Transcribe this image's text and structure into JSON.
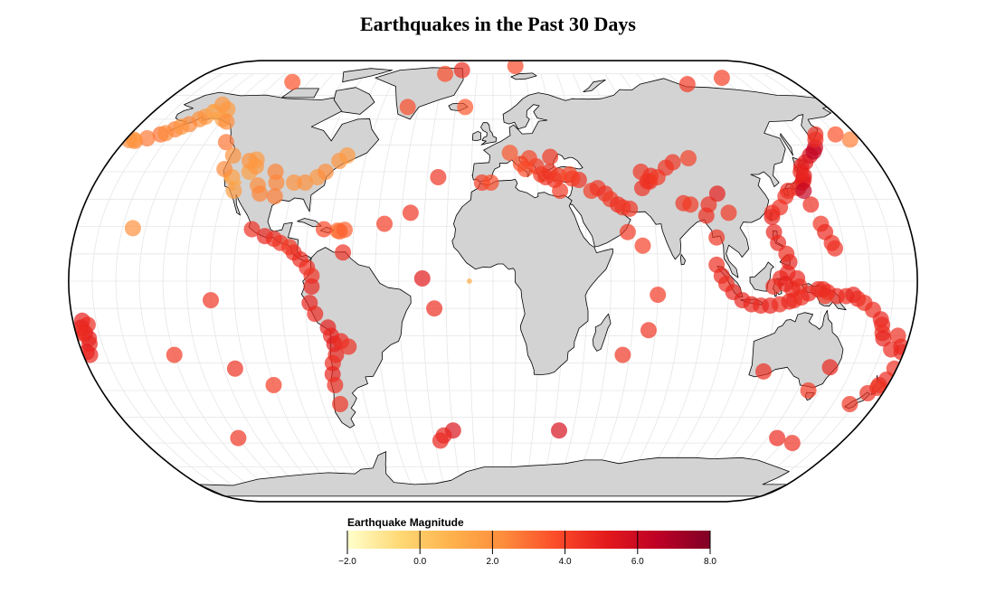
{
  "title": "Earthquakes in the Past 30 Days",
  "legend": {
    "title": "Earthquake Magnitude",
    "ticks": [
      "−2.0",
      "0.0",
      "2.0",
      "4.0",
      "6.0",
      "8.0"
    ],
    "domain": [
      -2,
      8
    ],
    "colors": [
      "#ffffcc",
      "#fed976",
      "#feb24c",
      "#fd8d3c",
      "#fc4e2a",
      "#e31a1c",
      "#bd0026",
      "#800026"
    ]
  },
  "map_data": {
    "projection": "natural-earth",
    "land_color": "#d3d3d3",
    "border_color": "#000000",
    "graticule": true,
    "quakes": [
      {
        "lon": -150,
        "lat": 61,
        "mag": 1.8
      },
      {
        "lon": -148,
        "lat": 63,
        "mag": 1.6
      },
      {
        "lon": -152,
        "lat": 60,
        "mag": 2.1
      },
      {
        "lon": -155,
        "lat": 58,
        "mag": 2.4
      },
      {
        "lon": -146,
        "lat": 62,
        "mag": 1.4
      },
      {
        "lon": -142,
        "lat": 64,
        "mag": 1.7
      },
      {
        "lon": -160,
        "lat": 56,
        "mag": 2.6
      },
      {
        "lon": -165,
        "lat": 54,
        "mag": 2.9
      },
      {
        "lon": -170,
        "lat": 52.5,
        "mag": 2.7
      },
      {
        "lon": -175,
        "lat": 51.5,
        "mag": 2.5
      },
      {
        "lon": -178,
        "lat": 51.8,
        "mag": 2.2
      },
      {
        "lon": -176,
        "lat": 52,
        "mag": 1.9
      },
      {
        "lon": -163,
        "lat": 54.5,
        "mag": 2.3
      },
      {
        "lon": -158,
        "lat": 57,
        "mag": 2.0
      },
      {
        "lon": -140,
        "lat": 60,
        "mag": 1.5
      },
      {
        "lon": -137,
        "lat": 59,
        "mag": 2.2
      },
      {
        "lon": -151,
        "lat": 65,
        "mag": 1.3
      },
      {
        "lon": -147,
        "lat": 66,
        "mag": 1.9
      },
      {
        "lon": -130,
        "lat": 51,
        "mag": 2.8
      },
      {
        "lon": -118,
        "lat": 36,
        "mag": 1.2
      },
      {
        "lon": -117,
        "lat": 34,
        "mag": 1.4
      },
      {
        "lon": -121,
        "lat": 37.5,
        "mag": 1.1
      },
      {
        "lon": -122,
        "lat": 38.5,
        "mag": 1.0
      },
      {
        "lon": -119,
        "lat": 38,
        "mag": 1.5
      },
      {
        "lon": -116,
        "lat": 33,
        "mag": 1.7
      },
      {
        "lon": -115,
        "lat": 36,
        "mag": 1.3
      },
      {
        "lon": -112,
        "lat": 40,
        "mag": 1.6
      },
      {
        "lon": -111,
        "lat": 44.5,
        "mag": 1.8
      },
      {
        "lon": -114,
        "lat": 44,
        "mag": 2.0
      },
      {
        "lon": -106,
        "lat": 35,
        "mag": 2.2
      },
      {
        "lon": -104,
        "lat": 32,
        "mag": 2.5
      },
      {
        "lon": -98,
        "lat": 36,
        "mag": 2.4
      },
      {
        "lon": -97,
        "lat": 31,
        "mag": 2.6
      },
      {
        "lon": -90,
        "lat": 36,
        "mag": 2.0
      },
      {
        "lon": -85,
        "lat": 36,
        "mag": 2.1
      },
      {
        "lon": -80,
        "lat": 38,
        "mag": 1.9
      },
      {
        "lon": -77,
        "lat": 40,
        "mag": 2.2
      },
      {
        "lon": -72,
        "lat": 44,
        "mag": 2.0
      },
      {
        "lon": -69,
        "lat": 46,
        "mag": 1.8
      },
      {
        "lon": -123,
        "lat": 46,
        "mag": 2.0
      },
      {
        "lon": -124,
        "lat": 41,
        "mag": 2.3
      },
      {
        "lon": -100,
        "lat": 40,
        "mag": 2.5
      },
      {
        "lon": -110,
        "lat": 42,
        "mag": 1.9
      },
      {
        "lon": -155.5,
        "lat": 19.4,
        "mag": 2.1
      },
      {
        "lon": -104,
        "lat": 19,
        "mag": 4.5
      },
      {
        "lon": -98,
        "lat": 16.5,
        "mag": 4.8
      },
      {
        "lon": -94,
        "lat": 15.5,
        "mag": 4.6
      },
      {
        "lon": -91,
        "lat": 14,
        "mag": 4.4
      },
      {
        "lon": -87,
        "lat": 12.5,
        "mag": 4.3
      },
      {
        "lon": -85,
        "lat": 10.5,
        "mag": 4.5
      },
      {
        "lon": -82,
        "lat": 8,
        "mag": 4.7
      },
      {
        "lon": -79,
        "lat": 5,
        "mag": 4.6
      },
      {
        "lon": -77,
        "lat": 2,
        "mag": 4.4
      },
      {
        "lon": -77,
        "lat": -2,
        "mag": 4.8
      },
      {
        "lon": -78,
        "lat": -8,
        "mag": 4.9
      },
      {
        "lon": -76,
        "lat": -12,
        "mag": 4.7
      },
      {
        "lon": -71,
        "lat": -17,
        "mag": 5.0
      },
      {
        "lon": -70,
        "lat": -20,
        "mag": 4.9
      },
      {
        "lon": -69,
        "lat": -23,
        "mag": 5.2
      },
      {
        "lon": -69,
        "lat": -27,
        "mag": 4.8
      },
      {
        "lon": -71,
        "lat": -30,
        "mag": 4.6
      },
      {
        "lon": -72,
        "lat": -34,
        "mag": 4.9
      },
      {
        "lon": -72,
        "lat": -38,
        "mag": 4.5
      },
      {
        "lon": -66,
        "lat": -22,
        "mag": 4.7
      },
      {
        "lon": -63,
        "lat": -24,
        "mag": 4.5
      },
      {
        "lon": -72,
        "lat": -45,
        "mag": 4.4
      },
      {
        "lon": -64,
        "lat": 10.5,
        "mag": 4.5
      },
      {
        "lon": -66,
        "lat": 18.2,
        "mag": 3.2
      },
      {
        "lon": -67,
        "lat": 18.5,
        "mag": 3.0
      },
      {
        "lon": -64,
        "lat": 18.8,
        "mag": 3.3
      },
      {
        "lon": -73,
        "lat": 19,
        "mag": 3.9
      },
      {
        "lon": -47,
        "lat": 21,
        "mag": 4.2
      },
      {
        "lon": -36,
        "lat": 25,
        "mag": 4.4
      },
      {
        "lon": -30,
        "lat": 1,
        "mag": 5.2
      },
      {
        "lon": -25,
        "lat": -10,
        "mag": 4.6
      },
      {
        "lon": -120,
        "lat": -7,
        "mag": 4.4
      },
      {
        "lon": -115,
        "lat": -32,
        "mag": 4.5
      },
      {
        "lon": -140,
        "lat": -27,
        "mag": 4.3
      },
      {
        "lon": -100,
        "lat": -38,
        "mag": 4.2
      },
      {
        "lon": -130,
        "lat": -58,
        "mag": 4.4
      },
      {
        "lon": -176,
        "lat": -14.5,
        "mag": 5.0
      },
      {
        "lon": -177,
        "lat": -17,
        "mag": 5.1
      },
      {
        "lon": -176,
        "lat": -19,
        "mag": 5.3
      },
      {
        "lon": -175,
        "lat": -21,
        "mag": 5.0
      },
      {
        "lon": -175.5,
        "lat": -23,
        "mag": 4.9
      },
      {
        "lon": -178,
        "lat": -26,
        "mag": 5.2
      },
      {
        "lon": -177,
        "lat": -27,
        "mag": 4.8
      },
      {
        "lon": -178,
        "lat": -19,
        "mag": 4.6
      },
      {
        "lon": -174,
        "lat": -16,
        "mag": 4.7
      },
      {
        "lon": -15,
        "lat": 65,
        "mag": 3.5
      },
      {
        "lon": -30,
        "lat": 80,
        "mag": 3.8
      },
      {
        "lon": -20,
        "lat": 82,
        "mag": 4.6
      },
      {
        "lon": 15,
        "lat": 84.5,
        "mag": 3.9
      },
      {
        "lon": 24,
        "lat": 38,
        "mag": 4.5
      },
      {
        "lon": 22,
        "lat": 39,
        "mag": 4.3
      },
      {
        "lon": 28,
        "lat": 37,
        "mag": 4.6
      },
      {
        "lon": 26,
        "lat": 40,
        "mag": 4.4
      },
      {
        "lon": 30,
        "lat": 38.5,
        "mag": 4.2
      },
      {
        "lon": 35,
        "lat": 39,
        "mag": 3.9
      },
      {
        "lon": 39,
        "lat": 37,
        "mag": 4.5
      },
      {
        "lon": 20,
        "lat": 42,
        "mag": 4.2
      },
      {
        "lon": 15,
        "lat": 41,
        "mag": 3.8
      },
      {
        "lon": 13,
        "lat": 43,
        "mag": 3.7
      },
      {
        "lon": 17,
        "lat": 45,
        "mag": 4.0
      },
      {
        "lon": 27,
        "lat": 45.5,
        "mag": 4.3
      },
      {
        "lon": 8,
        "lat": 47,
        "mag": 3.5
      },
      {
        "lon": -5,
        "lat": 36,
        "mag": 4.2
      },
      {
        "lon": -1,
        "lat": 36,
        "mag": 3.8
      },
      {
        "lon": 30,
        "lat": 33,
        "mag": 4.3
      },
      {
        "lon": 36,
        "lat": 37.5,
        "mag": 4.2
      },
      {
        "lon": 44,
        "lat": 33,
        "mag": 4.2
      },
      {
        "lon": 47,
        "lat": 34,
        "mag": 4.4
      },
      {
        "lon": 50,
        "lat": 32,
        "mag": 4.5
      },
      {
        "lon": 52,
        "lat": 30,
        "mag": 4.3
      },
      {
        "lon": 55,
        "lat": 28,
        "mag": 4.6
      },
      {
        "lon": 57,
        "lat": 27,
        "mag": 4.4
      },
      {
        "lon": 60,
        "lat": 26.5,
        "mag": 4.4
      },
      {
        "lon": 70,
        "lat": 36.5,
        "mag": 4.7
      },
      {
        "lon": 71,
        "lat": 36.4,
        "mag": 4.5
      },
      {
        "lon": 72,
        "lat": 38.5,
        "mag": 4.6
      },
      {
        "lon": 75,
        "lat": 38,
        "mag": 4.3
      },
      {
        "lon": 80,
        "lat": 41.5,
        "mag": 4.4
      },
      {
        "lon": 67,
        "lat": 34,
        "mag": 4.5
      },
      {
        "lon": 68,
        "lat": 40,
        "mag": 4.4
      },
      {
        "lon": 84,
        "lat": 28.5,
        "mag": 4.4
      },
      {
        "lon": 87,
        "lat": 28,
        "mag": 4.3
      },
      {
        "lon": 95,
        "lat": 28,
        "mag": 4.5
      },
      {
        "lon": 100,
        "lat": 32,
        "mag": 5.0
      },
      {
        "lon": 103,
        "lat": 25,
        "mag": 4.3
      },
      {
        "lon": 92,
        "lat": 45,
        "mag": 4.1
      },
      {
        "lon": 93,
        "lat": 24,
        "mag": 4.6
      },
      {
        "lon": 96,
        "lat": 16,
        "mag": 4.4
      },
      {
        "lon": 95,
        "lat": 6,
        "mag": 4.6
      },
      {
        "lon": 97,
        "lat": 2,
        "mag": 4.7
      },
      {
        "lon": 99,
        "lat": -1,
        "mag": 4.6
      },
      {
        "lon": 102,
        "lat": -4,
        "mag": 4.8
      },
      {
        "lon": 106,
        "lat": -7,
        "mag": 4.9
      },
      {
        "lon": 110,
        "lat": -8.5,
        "mag": 4.8
      },
      {
        "lon": 114,
        "lat": -9,
        "mag": 4.7
      },
      {
        "lon": 118,
        "lat": -9,
        "mag": 4.9
      },
      {
        "lon": 122,
        "lat": -8.5,
        "mag": 4.6
      },
      {
        "lon": 126,
        "lat": -7.5,
        "mag": 4.8
      },
      {
        "lon": 128,
        "lat": -7,
        "mag": 4.7
      },
      {
        "lon": 131,
        "lat": -6,
        "mag": 4.6
      },
      {
        "lon": 134,
        "lat": -4.5,
        "mag": 4.8
      },
      {
        "lon": 138,
        "lat": -3,
        "mag": 4.7
      },
      {
        "lon": 142,
        "lat": -4,
        "mag": 4.5
      },
      {
        "lon": 146,
        "lat": -5.5,
        "mag": 4.8
      },
      {
        "lon": 150,
        "lat": -5.5,
        "mag": 4.6
      },
      {
        "lon": 153,
        "lat": -5,
        "mag": 4.9
      },
      {
        "lon": 155,
        "lat": -6.5,
        "mag": 4.7
      },
      {
        "lon": 158,
        "lat": -8,
        "mag": 4.5
      },
      {
        "lon": 162,
        "lat": -10.5,
        "mag": 4.6
      },
      {
        "lon": 166,
        "lat": -14,
        "mag": 4.8
      },
      {
        "lon": 167,
        "lat": -16,
        "mag": 4.7
      },
      {
        "lon": 168,
        "lat": -19,
        "mag": 4.6
      },
      {
        "lon": 169,
        "lat": -21,
        "mag": 4.9
      },
      {
        "lon": 122,
        "lat": 1,
        "mag": 4.7
      },
      {
        "lon": 125,
        "lat": 3,
        "mag": 4.8
      },
      {
        "lon": 126,
        "lat": 7,
        "mag": 4.9
      },
      {
        "lon": 125,
        "lat": 10,
        "mag": 4.6
      },
      {
        "lon": 122,
        "lat": 14,
        "mag": 4.7
      },
      {
        "lon": 121,
        "lat": 18,
        "mag": 4.8
      },
      {
        "lon": 121.5,
        "lat": 23.5,
        "mag": 4.9
      },
      {
        "lon": 122,
        "lat": 25,
        "mag": 4.7
      },
      {
        "lon": 126,
        "lat": 27,
        "mag": 4.6
      },
      {
        "lon": 130,
        "lat": 31,
        "mag": 4.5
      },
      {
        "lon": 132,
        "lat": 33,
        "mag": 4.6
      },
      {
        "lon": 137,
        "lat": 34,
        "mag": 4.7
      },
      {
        "lon": 140,
        "lat": 36,
        "mag": 4.9
      },
      {
        "lon": 141,
        "lat": 37,
        "mag": 5.0
      },
      {
        "lon": 142,
        "lat": 38.5,
        "mag": 5.2
      },
      {
        "lon": 141.5,
        "lat": 40,
        "mag": 4.8
      },
      {
        "lon": 143,
        "lat": 42,
        "mag": 4.9
      },
      {
        "lon": 146,
        "lat": 43.5,
        "mag": 5.1
      },
      {
        "lon": 150,
        "lat": 46,
        "mag": 5.6
      },
      {
        "lon": 153,
        "lat": 47.5,
        "mag": 6.5
      },
      {
        "lon": 155,
        "lat": 49,
        "mag": 6.2
      },
      {
        "lon": 158,
        "lat": 52,
        "mag": 4.7
      },
      {
        "lon": 160,
        "lat": 54,
        "mag": 4.5
      },
      {
        "lon": 140,
        "lat": 28,
        "mag": 4.6
      },
      {
        "lon": 142,
        "lat": 21,
        "mag": 4.4
      },
      {
        "lon": 143,
        "lat": 18,
        "mag": 4.7
      },
      {
        "lon": 145,
        "lat": 14,
        "mag": 4.6
      },
      {
        "lon": 146,
        "lat": 12,
        "mag": 4.5
      },
      {
        "lon": 139,
        "lat": 33,
        "mag": 6.3
      },
      {
        "lon": 129,
        "lat": 1,
        "mag": 4.8
      },
      {
        "lon": 130,
        "lat": -2,
        "mag": 4.5
      },
      {
        "lon": 127,
        "lat": -3,
        "mag": 4.7
      },
      {
        "lon": 119,
        "lat": -2,
        "mag": 4.6
      },
      {
        "lon": 124,
        "lat": -1,
        "mag": 4.9
      },
      {
        "lon": 173,
        "lat": -41,
        "mag": 4.5
      },
      {
        "lon": 176,
        "lat": -38,
        "mag": 4.6
      },
      {
        "lon": 178,
        "lat": -36,
        "mag": 4.7
      },
      {
        "lon": 176,
        "lat": -39,
        "mag": 4.4
      },
      {
        "lon": 179,
        "lat": -32,
        "mag": 4.5
      },
      {
        "lon": 168,
        "lat": -45,
        "mag": 4.4
      },
      {
        "lon": 178,
        "lat": -24,
        "mag": 4.9
      },
      {
        "lon": 179,
        "lat": -26,
        "mag": 4.8
      },
      {
        "lon": 174,
        "lat": -25,
        "mag": 4.7
      },
      {
        "lon": 175,
        "lat": -20,
        "mag": 4.6
      },
      {
        "lon": 141,
        "lat": -5.5,
        "mag": 4.4
      },
      {
        "lon": 121,
        "lat": -33,
        "mag": 4.6
      },
      {
        "lon": 150,
        "lat": -31.5,
        "mag": 4.8
      },
      {
        "lon": 145,
        "lat": -40,
        "mag": 4.3
      },
      {
        "lon": 145,
        "lat": -58,
        "mag": 4.7
      },
      {
        "lon": 155,
        "lat": -60,
        "mag": 4.5
      },
      {
        "lon": -20,
        "lat": -55,
        "mag": 5.4
      },
      {
        "lon": -25,
        "lat": -57,
        "mag": 4.9
      },
      {
        "lon": -27,
        "lat": -59,
        "mag": 4.8
      },
      {
        "lon": 67,
        "lat": -18,
        "mag": 4.4
      },
      {
        "lon": 70,
        "lat": -5,
        "mag": 4.3
      },
      {
        "lon": 57,
        "lat": -27,
        "mag": 4.4
      },
      {
        "lon": 64,
        "lat": 13,
        "mag": 4.1
      },
      {
        "lon": 58,
        "lat": 18,
        "mag": 4.3
      },
      {
        "lon": 33,
        "lat": -55,
        "mag": 5.6
      },
      {
        "lon": 84,
        "lat": 43.5,
        "mag": 4.4
      },
      {
        "lon": 115,
        "lat": 75,
        "mag": 4.3
      },
      {
        "lon": 140,
        "lat": 78,
        "mag": 4.1
      },
      {
        "lon": -120,
        "lat": 76,
        "mag": 3.6
      },
      {
        "lon": 170,
        "lat": 54,
        "mag": 3.6
      },
      {
        "lon": 175,
        "lat": 52,
        "mag": 2.6
      },
      {
        "lon": -25,
        "lat": 38,
        "mag": 4.4
      },
      {
        "lon": -46,
        "lat": 65,
        "mag": 3.8
      },
      {
        "lon": -10,
        "lat": 0,
        "mag": 1.0
      },
      {
        "lon": 140,
        "lat": -3,
        "mag": 4.7
      }
    ]
  }
}
